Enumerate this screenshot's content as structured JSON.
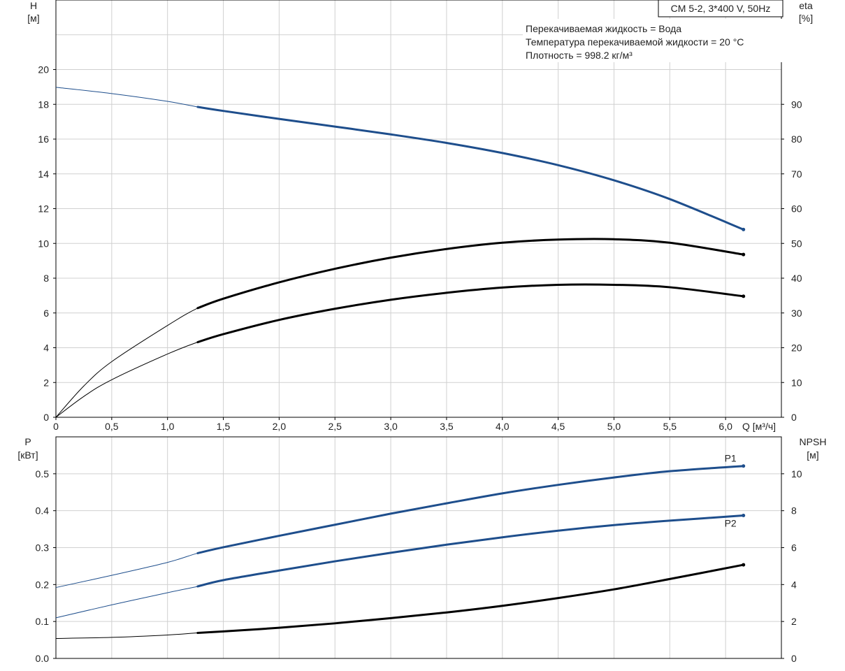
{
  "colors": {
    "blue": "#1e4e8c",
    "black": "#000000",
    "grid": "#d0d0d0"
  },
  "header": {
    "model_label": "CM 5-2, 3*400 V, 50Hz",
    "info_lines": [
      "Перекачиваемая жидкость = Вода",
      "Температура перекачиваемой жидкости = 20 °C",
      "Плотность = 998.2 кг/м³"
    ]
  },
  "chart_data": [
    {
      "type": "line",
      "axes": {
        "x": {
          "label": "Q [м³/ч]",
          "range": [
            0,
            6.5
          ],
          "ticks": [
            0,
            0.5,
            1.0,
            1.5,
            2.0,
            2.5,
            3.0,
            3.5,
            4.0,
            4.5,
            5.0,
            5.5,
            6.0
          ],
          "tick_labels": [
            "0",
            "0,5",
            "1,0",
            "1,5",
            "2,0",
            "2,5",
            "3,0",
            "3,5",
            "4,0",
            "4,5",
            "5,0",
            "5,5",
            "6,0"
          ]
        },
        "y_left": {
          "label_top": "H",
          "label_unit": "[м]",
          "range": [
            0,
            24
          ],
          "ticks": [
            0,
            2,
            4,
            6,
            8,
            10,
            12,
            14,
            16,
            18,
            20
          ],
          "tick_labels": [
            "0",
            "2",
            "4",
            "6",
            "8",
            "10",
            "12",
            "14",
            "16",
            "18",
            "20"
          ]
        },
        "y_right": {
          "label_top": "eta",
          "label_unit": "[%]",
          "range": [
            0,
            120
          ],
          "ticks": [
            0,
            10,
            20,
            30,
            40,
            50,
            60,
            70,
            80,
            90
          ],
          "tick_labels": [
            "0",
            "10",
            "20",
            "30",
            "40",
            "50",
            "60",
            "70",
            "80",
            "90"
          ]
        }
      },
      "grid": true,
      "series": [
        {
          "name": "",
          "axis": "left",
          "color": "blue",
          "operating_start": 1.27,
          "x": [
            0,
            0.5,
            1.0,
            1.27,
            1.5,
            2.0,
            2.5,
            3.0,
            3.5,
            4.0,
            4.5,
            5.0,
            5.5,
            6.16
          ],
          "y": [
            18.98,
            18.62,
            18.17,
            17.85,
            17.62,
            17.16,
            16.72,
            16.27,
            15.78,
            15.2,
            14.5,
            13.63,
            12.55,
            10.8
          ]
        },
        {
          "name": "",
          "axis": "right",
          "color": "black",
          "operating_start": 1.27,
          "x": [
            0,
            0.25,
            0.5,
            1.0,
            1.27,
            1.5,
            2.0,
            2.5,
            3.0,
            3.5,
            4.0,
            4.5,
            5.0,
            5.5,
            6.16
          ],
          "y": [
            0,
            9.0,
            16.0,
            26.4,
            31.4,
            34.1,
            38.8,
            42.7,
            45.9,
            48.4,
            50.2,
            51.1,
            51.2,
            50.2,
            46.8
          ]
        },
        {
          "name": "",
          "axis": "right",
          "color": "black",
          "operating_start": 1.27,
          "x": [
            0,
            0.25,
            0.5,
            1.0,
            1.27,
            1.5,
            2.0,
            2.5,
            3.0,
            3.5,
            4.0,
            4.5,
            5.0,
            5.5,
            6.16
          ],
          "y": [
            0,
            6.0,
            10.8,
            18.2,
            21.6,
            23.9,
            28.0,
            31.2,
            33.8,
            35.8,
            37.3,
            38.1,
            38.1,
            37.4,
            34.8
          ]
        }
      ]
    },
    {
      "type": "line",
      "axes": {
        "x": {
          "range": [
            0,
            6.5
          ],
          "ticks": [
            0,
            0.5,
            1.0,
            1.5,
            2.0,
            2.5,
            3.0,
            3.5,
            4.0,
            4.5,
            5.0,
            5.5,
            6.0
          ]
        },
        "y_left": {
          "label_top": "P",
          "label_unit": "[кВт]",
          "range": [
            0,
            0.6
          ],
          "ticks": [
            0.0,
            0.1,
            0.2,
            0.3,
            0.4,
            0.5
          ],
          "tick_labels": [
            "0.0",
            "0.1",
            "0.2",
            "0.3",
            "0.4",
            "0.5"
          ]
        },
        "y_right": {
          "label_top": "NPSH",
          "label_unit": "[м]",
          "range": [
            0,
            12
          ],
          "ticks": [
            0,
            2,
            4,
            6,
            8,
            10
          ],
          "tick_labels": [
            "0",
            "2",
            "4",
            "6",
            "8",
            "10"
          ]
        }
      },
      "grid": true,
      "series": [
        {
          "name": "P1",
          "axis": "left",
          "color": "blue",
          "operating_start": 1.27,
          "x": [
            0,
            0.5,
            1.0,
            1.27,
            1.5,
            2.0,
            2.5,
            3.0,
            3.5,
            4.0,
            4.5,
            5.0,
            5.5,
            6.16
          ],
          "y": [
            0.192,
            0.225,
            0.26,
            0.285,
            0.301,
            0.332,
            0.362,
            0.392,
            0.42,
            0.447,
            0.47,
            0.49,
            0.507,
            0.521
          ]
        },
        {
          "name": "P2",
          "axis": "left",
          "color": "blue",
          "operating_start": 1.27,
          "x": [
            0,
            0.5,
            1.0,
            1.27,
            1.5,
            2.0,
            2.5,
            3.0,
            3.5,
            4.0,
            4.5,
            5.0,
            5.5,
            6.16
          ],
          "y": [
            0.11,
            0.145,
            0.178,
            0.195,
            0.212,
            0.238,
            0.263,
            0.286,
            0.308,
            0.328,
            0.346,
            0.361,
            0.373,
            0.387
          ]
        },
        {
          "name": "",
          "axis": "right",
          "color": "black",
          "operating_start": 1.27,
          "x": [
            0,
            0.5,
            1.0,
            1.27,
            1.5,
            2.0,
            2.5,
            3.0,
            3.5,
            4.0,
            4.5,
            5.0,
            5.5,
            6.16
          ],
          "y": [
            1.08,
            1.14,
            1.27,
            1.38,
            1.46,
            1.66,
            1.9,
            2.18,
            2.49,
            2.85,
            3.27,
            3.74,
            4.3,
            5.07
          ]
        }
      ]
    }
  ]
}
